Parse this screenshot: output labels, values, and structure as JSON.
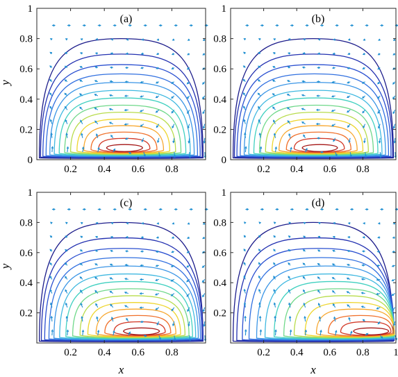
{
  "chart_data": [
    {
      "type": "contour",
      "panel_label": "(a)",
      "xlabel": "",
      "ylabel": "y",
      "xlim": [
        0,
        1
      ],
      "ylim": [
        0,
        1
      ],
      "xticks": [
        "",
        "0.2",
        "0.4",
        "0.6",
        "0.8",
        ""
      ],
      "yticks": [
        "0",
        "0.2",
        "0.4",
        "0.6",
        "0.8",
        "1"
      ],
      "vortex_center": [
        0.52,
        0.09
      ],
      "levels": 14,
      "grid": false
    },
    {
      "type": "contour",
      "panel_label": "(b)",
      "xlabel": "",
      "ylabel": "",
      "xlim": [
        0,
        1
      ],
      "ylim": [
        0,
        1
      ],
      "xticks": [
        "",
        "0.2",
        "0.4",
        "0.6",
        "0.8",
        ""
      ],
      "yticks": [
        "0",
        "0.2",
        "0.4",
        "0.6",
        "0.8",
        "1"
      ],
      "vortex_center": [
        0.54,
        0.09
      ],
      "levels": 14,
      "grid": false
    },
    {
      "type": "contour",
      "panel_label": "(c)",
      "xlabel": "x",
      "ylabel": "y",
      "xlim": [
        0,
        1
      ],
      "ylim": [
        0,
        1
      ],
      "xticks": [
        "",
        "0.2",
        "0.4",
        "0.6",
        "0.8",
        ""
      ],
      "yticks": [
        "",
        "0.2",
        "0.4",
        "0.6",
        "0.8",
        "1"
      ],
      "vortex_center": [
        0.62,
        0.09
      ],
      "levels": 14,
      "grid": false
    },
    {
      "type": "contour",
      "panel_label": "(d)",
      "xlabel": "x",
      "ylabel": "",
      "xlim": [
        0,
        1
      ],
      "ylim": [
        0,
        1
      ],
      "xticks": [
        "",
        "0.2",
        "0.4",
        "0.6",
        "0.8",
        "1"
      ],
      "yticks": [
        "",
        "0.2",
        "0.4",
        "0.6",
        "0.8",
        "1"
      ],
      "vortex_center": [
        0.85,
        0.1
      ],
      "levels": 14,
      "grid": false
    }
  ],
  "colors": {
    "contour_levels": [
      "#1b1b8a",
      "#2230b0",
      "#2a4fd0",
      "#3170e0",
      "#3a95e6",
      "#3fb8e0",
      "#40d0c0",
      "#6fd88a",
      "#b8dc4c",
      "#eed52c",
      "#f7a52a",
      "#f0702a",
      "#d23a28",
      "#a51818"
    ],
    "arrows": "#1f8fd1",
    "frame": "#262626"
  }
}
